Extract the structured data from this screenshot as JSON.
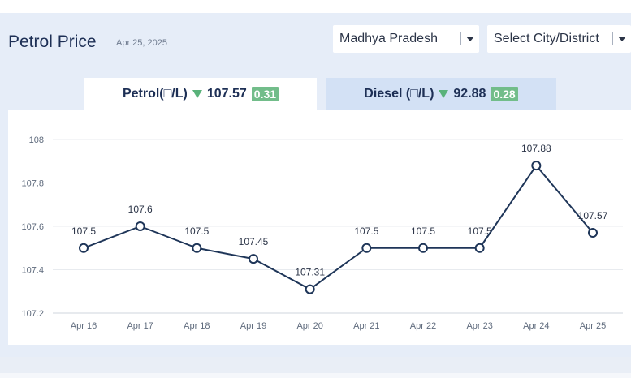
{
  "header": {
    "title": "Petrol Price",
    "date": "Apr 25, 2025"
  },
  "filters": {
    "state_selected": "Madhya Pradesh",
    "city_placeholder": "Select City/District"
  },
  "tabs": [
    {
      "label": "Petrol(□/L)",
      "price": "107.57",
      "change": "0.31",
      "active": true
    },
    {
      "label": "Diesel (□/L)",
      "price": "92.88",
      "change": "0.28",
      "active": false
    }
  ],
  "colors": {
    "line": "#1e3558",
    "badge": "#72bd8a",
    "arrow_down": "#59b27a",
    "active_tab": "#ffffff",
    "inactive_tab": "#d3e1f5"
  },
  "icons": {
    "dropdown": "chevron-down-icon",
    "price_trend": "arrow-down-icon"
  },
  "chart_data": {
    "type": "line",
    "categories": [
      "Apr 16",
      "Apr 17",
      "Apr 18",
      "Apr 19",
      "Apr 20",
      "Apr 21",
      "Apr 22",
      "Apr 23",
      "Apr 24",
      "Apr 25"
    ],
    "series": [
      {
        "values": [
          107.5,
          107.6,
          107.5,
          107.45,
          107.31,
          107.5,
          107.5,
          107.5,
          107.88,
          107.57
        ]
      }
    ],
    "data_labels": [
      "107.5",
      "107.6",
      "107.5",
      "107.45",
      "107.31",
      "107.5",
      "107.5",
      "107.5",
      "107.88",
      "107.57"
    ],
    "y_ticks": [
      "107.2",
      "107.4",
      "107.6",
      "107.8",
      "108"
    ],
    "ylim": [
      107.2,
      108
    ],
    "grid": true,
    "legend": "none"
  }
}
